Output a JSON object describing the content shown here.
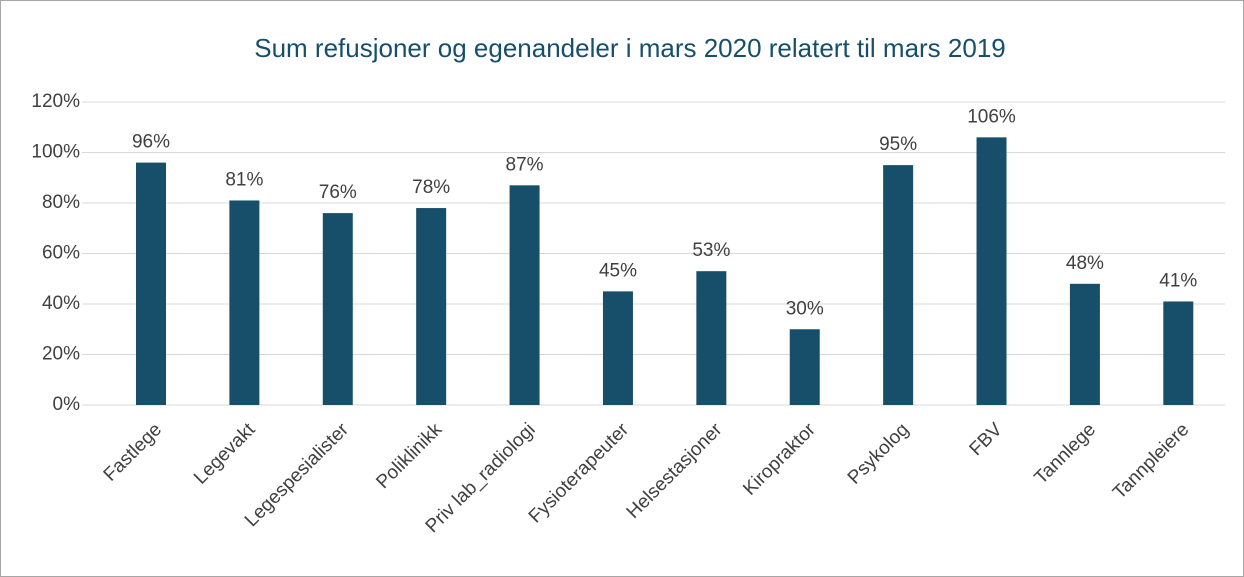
{
  "chart_data": {
    "type": "bar",
    "title": "Sum refusjoner og egenandeler i mars 2020 relatert til mars 2019",
    "categories": [
      "Fastlege",
      "Legevakt",
      "Legespesialister",
      "Poliklinikk",
      "Priv lab_radiologi",
      "Fysioterapeuter",
      "Helsestasjoner",
      "Kiropraktor",
      "Psykolog",
      "FBV",
      "Tannlege",
      "Tannpleiere"
    ],
    "values": [
      96,
      81,
      76,
      78,
      87,
      45,
      53,
      30,
      95,
      106,
      48,
      41
    ],
    "value_labels": [
      "96%",
      "81%",
      "76%",
      "78%",
      "87%",
      "45%",
      "53%",
      "30%",
      "95%",
      "106%",
      "48%",
      "41%"
    ],
    "color": "#174f6b",
    "ylim": [
      0,
      120
    ],
    "yticks": [
      {
        "value": 0,
        "label": "0%"
      },
      {
        "value": 20,
        "label": "20%"
      },
      {
        "value": 40,
        "label": "40%"
      },
      {
        "value": 60,
        "label": "60%"
      },
      {
        "value": 80,
        "label": "80%"
      },
      {
        "value": 100,
        "label": "100%"
      },
      {
        "value": 120,
        "label": "120%"
      }
    ],
    "grid": true
  }
}
